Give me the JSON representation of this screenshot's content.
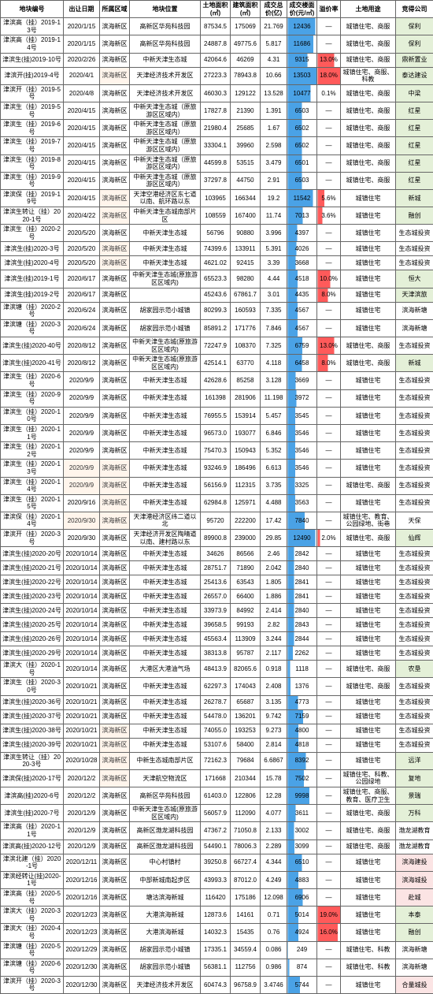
{
  "colors": {
    "border": "#666666",
    "blue_bar": "#4aa2e6",
    "red_bar": "#ff5a5a",
    "green_bg": "#e4f0d8",
    "pink_bg": "#fbe4e4",
    "watermark_bg": "#fff5ec"
  },
  "columns": [
    "地块编号",
    "出让日期",
    "所属区域",
    "地块位置",
    "土地面积(㎡)",
    "建筑面积(㎡)",
    "成交总价(亿)",
    "成交楼面价(元/㎡)",
    "溢价率",
    "土地用途",
    "竞得公司"
  ],
  "rows": [
    {
      "c": [
        "津滨高（挂）2019-13号",
        "2020/1/15",
        "滨海新区",
        "高新区华苑科技园",
        "87534.5",
        "175069",
        "21.769",
        "12436",
        "—",
        "城镇住宅、商服",
        "保利"
      ],
      "blue": 95,
      "green": true
    },
    {
      "c": [
        "津滨高（挂）2019-14号",
        "2020/1/15",
        "滨海新区",
        "高新区华苑科技园",
        "24887.8",
        "49775.6",
        "5.817",
        "11686",
        "—",
        "城镇住宅、商服",
        "保利"
      ],
      "blue": 88,
      "green": true
    },
    {
      "c": [
        "津滨生(挂)2019-10号",
        "2020/2/26",
        "滨海新区",
        "中新天津生态城",
        "42064.6",
        "46269",
        "4.31",
        "9315",
        "13.0%",
        "城镇住宅、商服",
        "鼎新置业"
      ],
      "blue": 68,
      "red": 72,
      "green": true
    },
    {
      "c": [
        "津滨开(挂)2019-4号",
        "2020/4/1",
        "滨海新区",
        "天津经济技术开发区",
        "27223.3",
        "78943.8",
        "10.66",
        "13503",
        "18.0%",
        "城镇住宅、商服、科教",
        "泰达建设"
      ],
      "blue": 99,
      "red": 99,
      "green": true,
      "wm": [
        2
      ]
    },
    {
      "c": [
        "津滨开（挂）2019-5号",
        "2020/4/8",
        "滨海新区",
        "天津经济技术开发区",
        "46030.3",
        "129122",
        "13.528",
        "10477",
        "0.1%",
        "城镇住宅、商服",
        "中梁"
      ],
      "blue": 78,
      "green": true
    },
    {
      "c": [
        "津滨生（挂）2019-5号",
        "2020/4/15",
        "滨海新区",
        "中新天津生态城（原旅游区区域内）",
        "17827.8",
        "21390",
        "1.391",
        "6503",
        "—",
        "城镇住宅、商服",
        "红星"
      ],
      "blue": 48,
      "green": true
    },
    {
      "c": [
        "津滨生（挂）2019-6号",
        "2020/4/15",
        "滨海新区",
        "中新天津生态城（原旅游区区域内）",
        "21980.4",
        "25685",
        "1.67",
        "6502",
        "—",
        "城镇住宅、商服",
        "红星"
      ],
      "blue": 48,
      "green": true
    },
    {
      "c": [
        "津滨生（挂）2019-7号",
        "2020/4/15",
        "滨海新区",
        "中新天津生态城（原旅游区区域内）",
        "33304.1",
        "39960",
        "2.598",
        "6502",
        "—",
        "城镇住宅、商服",
        "红星"
      ],
      "blue": 48,
      "green": true
    },
    {
      "c": [
        "津滨生（挂）2019-8号",
        "2020/4/15",
        "滨海新区",
        "中新天津生态城（原旅游区区域内）",
        "44599.8",
        "53515",
        "3.479",
        "6501",
        "—",
        "城镇住宅、商服",
        "红星"
      ],
      "blue": 48,
      "green": true
    },
    {
      "c": [
        "津滨生（挂）2019-9号",
        "2020/4/15",
        "滨海新区",
        "中新天津生态城（原旅游区区域内）",
        "37297.8",
        "44750",
        "2.91",
        "6503",
        "—",
        "城镇住宅、商服",
        "红星"
      ],
      "blue": 48,
      "green": true
    },
    {
      "c": [
        "津滨保（挂）2019-19号",
        "2020/4/15",
        "滨海新区",
        "天津空港经济区东七道以南、航环路以东",
        "103965",
        "166344",
        "19.2",
        "11542",
        "5.6%",
        "城镇住宅",
        "新城"
      ],
      "blue": 86,
      "red": 30,
      "green": true,
      "wm": [
        2
      ]
    },
    {
      "c": [
        "津滨生转让（挂）2020-1号",
        "2020/4/22",
        "滨海新区",
        "中新天津生态城南部片区",
        "108559",
        "167400",
        "11.74",
        "7013",
        "3.6%",
        "城镇住宅",
        "融创"
      ],
      "blue": 52,
      "red": 20,
      "green": true,
      "wm": [
        2
      ]
    },
    {
      "c": [
        "津滨生（挂）2020-2号",
        "2020/5/20",
        "滨海新区",
        "中新天津生态城",
        "56796",
        "90880",
        "3.996",
        "4397",
        "—",
        "城镇住宅",
        "生态城投资"
      ],
      "blue": 33
    },
    {
      "c": [
        "津滨生(挂)2020-3号",
        "2020/5/20",
        "滨海新区",
        "中新天津生态城",
        "74399.6",
        "133911",
        "5.391",
        "4026",
        "—",
        "城镇住宅",
        "生态城投资"
      ],
      "blue": 30,
      "wm": [
        2
      ]
    },
    {
      "c": [
        "津滨生(挂)2020-4号",
        "2020/5/20",
        "滨海新区",
        "中新天津生态城",
        "4621.02",
        "92415",
        "3.39",
        "3668",
        "—",
        "城镇住宅",
        "生态城投资"
      ],
      "blue": 27,
      "wm": [
        2
      ]
    },
    {
      "c": [
        "津滨生(挂)2019-1号",
        "2020/6/17",
        "滨海新区",
        "中新天津生态城(原旅游区区域内)",
        "65523.3",
        "98280",
        "4.44",
        "4518",
        "10.0%",
        "城镇住宅",
        "恒大"
      ],
      "blue": 34,
      "red": 55,
      "green": true
    },
    {
      "c": [
        "津滨生(挂)2019-2号",
        "2020/6/17",
        "滨海新区",
        "",
        "45243.6",
        "67861.7",
        "3.01",
        "4435",
        "8.0%",
        "城镇住宅",
        "天津滨旅"
      ],
      "blue": 33,
      "red": 44,
      "green": true
    },
    {
      "c": [
        "津滨塘（挂）2020-2号",
        "2020/6/24",
        "滨海新区",
        "胡家园示范小城镇",
        "80299.3",
        "160593",
        "7.335",
        "4567",
        "—",
        "城镇住宅",
        "滨海新塘"
      ],
      "blue": 34
    },
    {
      "c": [
        "津滨塘（挂）2020-3号",
        "2020/6/24",
        "滨海新区",
        "胡家园示范小城镇",
        "85891.2",
        "171776",
        "7.846",
        "4567",
        "—",
        "城镇住宅",
        "滨海新塘"
      ],
      "blue": 34
    },
    {
      "c": [
        "津滨生(挂)2020-40号",
        "2020/8/12",
        "滨海新区",
        "中新天津生态城(原旅游区区域内)",
        "72247.9",
        "108370",
        "7.325",
        "6759",
        "13.0%",
        "城镇住宅、商服",
        "生态城投资"
      ],
      "blue": 50,
      "red": 72
    },
    {
      "c": [
        "津滨生(挂)2020-41号",
        "2020/8/12",
        "滨海新区",
        "中新天津生态城(原旅游区区域内)",
        "42514.1",
        "63770",
        "4.118",
        "6458",
        "8.0%",
        "城镇住宅、商服",
        "新城"
      ],
      "blue": 48,
      "red": 44,
      "green": true
    },
    {
      "c": [
        "津滨生（挂）2020-6号",
        "2020/9/9",
        "滨海新区",
        "中新天津生态城",
        "42628.6",
        "85258",
        "3.128",
        "3669",
        "—",
        "城镇住宅",
        "生态城投资"
      ],
      "blue": 27
    },
    {
      "c": [
        "津滨生（挂）2020-9号",
        "2020/9/9",
        "滨海新区",
        "中新天津生态城",
        "161398",
        "281906",
        "11.198",
        "3972",
        "—",
        "城镇住宅",
        "生态城投资"
      ],
      "blue": 30
    },
    {
      "c": [
        "津滨生（挂）2020-10号",
        "2020/9/9",
        "滨海新区",
        "中新天津生态城",
        "76955.5",
        "153914",
        "5.457",
        "3545",
        "—",
        "城镇住宅",
        "生态城投资"
      ],
      "blue": 26
    },
    {
      "c": [
        "津滨生（挂）2020-11号",
        "2020/9/9",
        "滨海新区",
        "中新天津生态城",
        "96573.0",
        "193077",
        "6.846",
        "3546",
        "—",
        "城镇住宅",
        "生态城投资"
      ],
      "blue": 26
    },
    {
      "c": [
        "津滨生（挂）2020-12号",
        "2020/9/9",
        "滨海新区",
        "中新天津生态城",
        "75470.3",
        "150943",
        "5.352",
        "3546",
        "—",
        "城镇住宅",
        "生态城投资"
      ],
      "blue": 26
    },
    {
      "c": [
        "津滨生（挂）2020-13号",
        "2020/9/9",
        "滨海新区",
        "中新天津生态城",
        "93246.9",
        "186496",
        "6.613",
        "3546",
        "—",
        "城镇住宅",
        "生态城投资"
      ],
      "blue": 26,
      "wm": [
        1,
        2
      ]
    },
    {
      "c": [
        "津滨生（挂）2020-14号",
        "2020/9/9",
        "滨海新区",
        "中新天津生态城",
        "56156.9",
        "112315",
        "3.735",
        "3325",
        "—",
        "城镇住宅、商服",
        "生态城投资"
      ],
      "blue": 25,
      "wm": [
        1,
        2
      ]
    },
    {
      "c": [
        "津滨生（挂）2020-15号",
        "2020/9/16",
        "滨海新区",
        "中新天津生态城",
        "62984.8",
        "125971",
        "4.488",
        "3563",
        "—",
        "城镇住宅",
        "生态城投资"
      ],
      "blue": 26,
      "wm": [
        2
      ]
    },
    {
      "c": [
        "津滨保（挂）2020-14号",
        "2020/9/30",
        "滨海新区",
        "天津港经济区纬二道以北",
        "95720",
        "222200",
        "17.42",
        "7840",
        "—",
        "城镇住宅、教育、公园绿地、街巷",
        "天保"
      ],
      "blue": 58,
      "wm": [
        1,
        2
      ]
    },
    {
      "c": [
        "津滨开（挂）2020-3号",
        "2020/9/30",
        "滨海新区",
        "天津经济开发区陶晴道以南、建村路以东",
        "89900.8",
        "239000",
        "29.85",
        "12490",
        "2.0%",
        "城镇住宅、商服",
        "仙辉"
      ],
      "blue": 95,
      "red": 11,
      "green": true
    },
    {
      "c": [
        "津滨生(挂)2020-20号",
        "2020/10/14",
        "滨海新区",
        "中新天津生态城",
        "34626",
        "86566",
        "2.46",
        "2842",
        "—",
        "城镇住宅",
        "生态城投资"
      ],
      "blue": 21
    },
    {
      "c": [
        "津滨生(挂)2020-21号",
        "2020/10/14",
        "滨海新区",
        "中新天津生态城",
        "28751.7",
        "71890",
        "2.042",
        "2840",
        "—",
        "城镇住宅",
        "生态城投资"
      ],
      "blue": 21
    },
    {
      "c": [
        "津滨生(挂)2020-22号",
        "2020/10/14",
        "滨海新区",
        "中新天津生态城",
        "25413.6",
        "63543",
        "1.805",
        "2841",
        "—",
        "城镇住宅",
        "生态城投资"
      ],
      "blue": 21
    },
    {
      "c": [
        "津滨生(挂)2020-23号",
        "2020/10/14",
        "滨海新区",
        "中新天津生态城",
        "26557.0",
        "66400",
        "1.886",
        "2841",
        "—",
        "城镇住宅",
        "生态城投资"
      ],
      "blue": 21
    },
    {
      "c": [
        "津滨生(挂)2020-24号",
        "2020/10/14",
        "滨海新区",
        "中新天津生态城",
        "33973.9",
        "84992",
        "2.414",
        "2840",
        "—",
        "城镇住宅",
        "生态城投资"
      ],
      "blue": 21
    },
    {
      "c": [
        "津滨生(挂)2020-25号",
        "2020/10/14",
        "滨海新区",
        "中新天津生态城",
        "39658.5",
        "99193",
        "2.82",
        "2843",
        "—",
        "城镇住宅",
        "生态城投资"
      ],
      "blue": 21
    },
    {
      "c": [
        "津滨生(挂)2020-26号",
        "2020/10/14",
        "滨海新区",
        "中新天津生态城",
        "45563.4",
        "113909",
        "3.244",
        "2844",
        "—",
        "城镇住宅",
        "生态城投资"
      ],
      "blue": 21
    },
    {
      "c": [
        "津滨生(挂)2020-29号",
        "2020/10/14",
        "滨海新区",
        "中新天津生态城",
        "38313.8",
        "95787",
        "2.117",
        "2262",
        "—",
        "城镇住宅",
        "生态城投资"
      ],
      "blue": 17
    },
    {
      "c": [
        "津滨大（挂）2020-1号",
        "2020/10/14",
        "滨海新区",
        "大港区大港油气场",
        "48413.9",
        "82065.6",
        "0.918",
        "1118",
        "—",
        "城镇住宅、商服",
        "农垦"
      ],
      "blue": 8,
      "green": true
    },
    {
      "c": [
        "津滨生（挂）2020-30号",
        "2020/10/21",
        "滨海新区",
        "中新天津生态城",
        "62297.3",
        "174043",
        "2.408",
        "1376",
        "—",
        "城镇住宅、商服",
        "生态城投资"
      ],
      "blue": 10
    },
    {
      "c": [
        "津滨生(挂)2020-36号",
        "2020/10/21",
        "滨海新区",
        "中新天津生态城",
        "26278.7",
        "65687",
        "3.135",
        "4773",
        "—",
        "城镇住宅",
        "生态城投资"
      ],
      "blue": 35
    },
    {
      "c": [
        "津滨生(挂)2020-37号",
        "2020/10/21",
        "滨海新区",
        "中新天津生态城",
        "54478.0",
        "136201",
        "9.742",
        "7159",
        "—",
        "城镇住宅",
        "生态城投资"
      ],
      "blue": 53
    },
    {
      "c": [
        "津滨生(挂)2020-38号",
        "2020/10/21",
        "滨海新区",
        "中新天津生态城",
        "74055.0",
        "193253",
        "9.273",
        "4800",
        "—",
        "城镇住宅",
        "生态城投资"
      ],
      "blue": 36,
      "wm": [
        2
      ]
    },
    {
      "c": [
        "津滨生(挂)2020-39号",
        "2020/10/21",
        "滨海新区",
        "中新天津生态城",
        "53107.6",
        "58400",
        "2.814",
        "4818",
        "—",
        "城镇住宅",
        "生态城投资"
      ],
      "blue": 36,
      "wm": [
        2
      ]
    },
    {
      "c": [
        "津滨生转让（挂）2020-3号",
        "2020/10/28",
        "滨海新区",
        "中新生态城南部片区",
        "72162.3",
        "79684",
        "6.6867",
        "8392",
        "—",
        "城镇住宅",
        "远洋"
      ],
      "blue": 62,
      "green": true,
      "wm": [
        2
      ]
    },
    {
      "c": [
        "津滨保(挂)2020-17号",
        "2020/12/2",
        "滨海新区",
        "天津航空物流区",
        "171668",
        "210344",
        "15.78",
        "7502",
        "—",
        "城镇住宅、科教、公园绿地",
        "复地"
      ],
      "blue": 56,
      "green": true,
      "wm": [
        2
      ]
    },
    {
      "c": [
        "津滨高(挂)2020-6号",
        "2020/12/2",
        "滨海新区",
        "高新区华苑科技园",
        "61403.0",
        "122806",
        "12.28",
        "9998",
        "—",
        "城镇住宅、商服、教育、医疗卫生",
        "景瑞"
      ],
      "blue": 74,
      "green": true
    },
    {
      "c": [
        "津滨生(挂)2020-7号",
        "2020/12/9",
        "滨海新区",
        "中新天津生态城(原旅游区区域内)",
        "56057.9",
        "112090",
        "4.077",
        "3611",
        "—",
        "城镇住宅、商服",
        "万科"
      ],
      "blue": 27,
      "green": true
    },
    {
      "c": [
        "津滨高（挂）2020-11号",
        "2020/12/9",
        "滨海新区",
        "高新区渤龙湖科技园",
        "47367.2",
        "71050.8",
        "2.133",
        "3002",
        "—",
        "城镇住宅、商服",
        "渤龙湖教育"
      ],
      "blue": 22
    },
    {
      "c": [
        "津滨高(挂)2020-12号",
        "2020/12/9",
        "滨海新区",
        "高新区渤龙湖科技园",
        "54490.1",
        "78006.3",
        "2.289",
        "3099",
        "—",
        "城镇住宅、商服",
        "渤龙湖教育"
      ],
      "blue": 23
    },
    {
      "c": [
        "津滨北建（挂）2020-1号",
        "2020/12/11",
        "滨海新区",
        "中心村镇村",
        "39250.8",
        "66727.4",
        "4.344",
        "6510",
        "—",
        "城镇住宅",
        "滨海建投"
      ],
      "blue": 48,
      "pink": true
    },
    {
      "c": [
        "津滨经转让(挂)2020-1号",
        "2020/12/16",
        "滨海新区",
        "中部新城南起步区",
        "43993.3",
        "87012.0",
        "4.249",
        "4883",
        "—",
        "城镇住宅",
        "滨海城投"
      ],
      "blue": 36,
      "pink": true
    },
    {
      "c": [
        "津滨高（挂）2020-5号",
        "2020/12/16",
        "滨海新区",
        "塘沽滨海新城",
        "116420",
        "175186",
        "12.098",
        "6906",
        "—",
        "城镇住宅",
        "赴城"
      ],
      "blue": 51,
      "pink": true
    },
    {
      "c": [
        "津滨大（挂）2020-3号",
        "2020/12/23",
        "滨海新区",
        "大港滨海新城",
        "12873.6",
        "14161",
        "0.71",
        "5014",
        "19.0%",
        "城镇住宅",
        "本泰"
      ],
      "blue": 37,
      "red": 99,
      "green": true
    },
    {
      "c": [
        "津滨大（挂）2020-4号",
        "2020/12/23",
        "滨海新区",
        "大港滨海新城",
        "14032.3",
        "15435",
        "0.76",
        "4924",
        "16.0%",
        "城镇住宅",
        "融创"
      ],
      "blue": 36,
      "red": 88,
      "green": true
    },
    {
      "c": [
        "津滨塘（挂）2020-5号",
        "2020/12/29",
        "滨海新区",
        "胡家园示范小城镇",
        "17335.1",
        "34559.4",
        "0.086",
        "249",
        "—",
        "城镇住宅、科教",
        "滨海新塘"
      ],
      "blue": 2
    },
    {
      "c": [
        "津滨塘（挂）2020-6号",
        "2020/12/30",
        "滨海新区",
        "胡家园示范小城镇",
        "56381.1",
        "112756",
        "0.986",
        "874",
        "—",
        "城镇住宅、科教",
        "滨海新塘"
      ],
      "blue": 6
    },
    {
      "c": [
        "津滨开（挂）2020-3号",
        "2020/12/30",
        "滨海新区",
        "天津经济技术开发区",
        "60474.3",
        "96758.9",
        "3.4746",
        "5744",
        "—",
        "城镇住宅",
        "合量城投"
      ],
      "blue": 42,
      "pink": true
    }
  ]
}
